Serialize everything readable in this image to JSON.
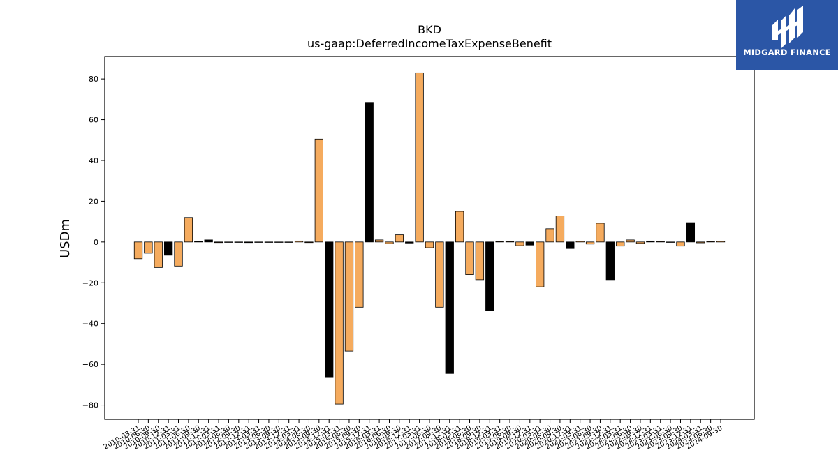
{
  "logo": {
    "text": "MIDGARD FINANCE",
    "icon": "midgard-logo-icon",
    "background": "#2b56a6"
  },
  "chart_data": {
    "type": "bar",
    "title": "BKD",
    "subtitle": "us-gaap:DeferredIncomeTaxExpenseBenefit",
    "xlabel": "",
    "ylabel": "USDm",
    "ylim": [
      -87,
      91
    ],
    "yticks": [
      -80,
      -60,
      -40,
      -20,
      0,
      20,
      40,
      60,
      80
    ],
    "grid": false,
    "colors": {
      "quarter": "#f5ab5e",
      "annual": "#000000",
      "edge": "#000000"
    },
    "categories": [
      "2010-03-31",
      "2010-06-30",
      "2010-09-30",
      "2010-12-31",
      "2011-03-31",
      "2011-06-30",
      "2011-09-30",
      "2011-12-31",
      "2012-03-31",
      "2012-06-30",
      "2012-09-30",
      "2012-12-31",
      "2013-03-31",
      "2013-06-30",
      "2013-09-30",
      "2013-12-31",
      "2014-03-31",
      "2014-06-30",
      "2014-09-30",
      "2014-12-31",
      "2015-03-31",
      "2015-06-30",
      "2015-09-30",
      "2015-12-31",
      "2016-03-31",
      "2016-06-30",
      "2016-09-30",
      "2016-12-31",
      "2017-03-31",
      "2017-06-30",
      "2017-09-30",
      "2017-12-31",
      "2018-03-31",
      "2018-06-30",
      "2018-09-30",
      "2018-12-31",
      "2019-03-31",
      "2019-06-30",
      "2019-09-30",
      "2019-12-31",
      "2020-03-31",
      "2020-06-30",
      "2020-09-30",
      "2020-12-31",
      "2021-03-31",
      "2021-06-30",
      "2021-09-30",
      "2021-12-31",
      "2022-03-31",
      "2022-06-30",
      "2022-09-30",
      "2022-12-31",
      "2023-03-31",
      "2023-06-30",
      "2023-09-30",
      "2023-12-31",
      "2024-03-31",
      "2024-06-30",
      "2024-09-30"
    ],
    "values": [
      -8.2,
      -5.5,
      -12.5,
      -6.5,
      -11.8,
      12.0,
      0.2,
      1.0,
      -0.3,
      -0.2,
      -0.2,
      -0.3,
      -0.2,
      -0.2,
      -0.2,
      -0.2,
      0.5,
      -0.3,
      50.5,
      -66.5,
      -79.5,
      -53.5,
      -32.0,
      68.5,
      1.0,
      -0.8,
      3.5,
      -0.5,
      83.0,
      -2.8,
      -32.0,
      -64.5,
      15.0,
      -16.0,
      -18.5,
      -33.5,
      0.3,
      0.3,
      -1.8,
      -1.5,
      -22.0,
      6.5,
      12.8,
      -3.2,
      0.4,
      -1.0,
      9.2,
      -18.5,
      -2.0,
      1.0,
      -0.7,
      0.5,
      0.3,
      -0.2,
      -2.0,
      9.5,
      -0.4,
      0.3,
      0.4
    ],
    "is_annual": [
      false,
      false,
      false,
      true,
      false,
      false,
      false,
      true,
      false,
      false,
      false,
      true,
      false,
      false,
      false,
      true,
      false,
      false,
      false,
      true,
      false,
      false,
      false,
      true,
      false,
      false,
      false,
      true,
      false,
      false,
      false,
      true,
      false,
      false,
      false,
      true,
      false,
      false,
      false,
      true,
      false,
      false,
      false,
      true,
      false,
      false,
      false,
      true,
      false,
      false,
      false,
      true,
      false,
      false,
      false,
      true,
      false,
      false,
      false
    ]
  }
}
